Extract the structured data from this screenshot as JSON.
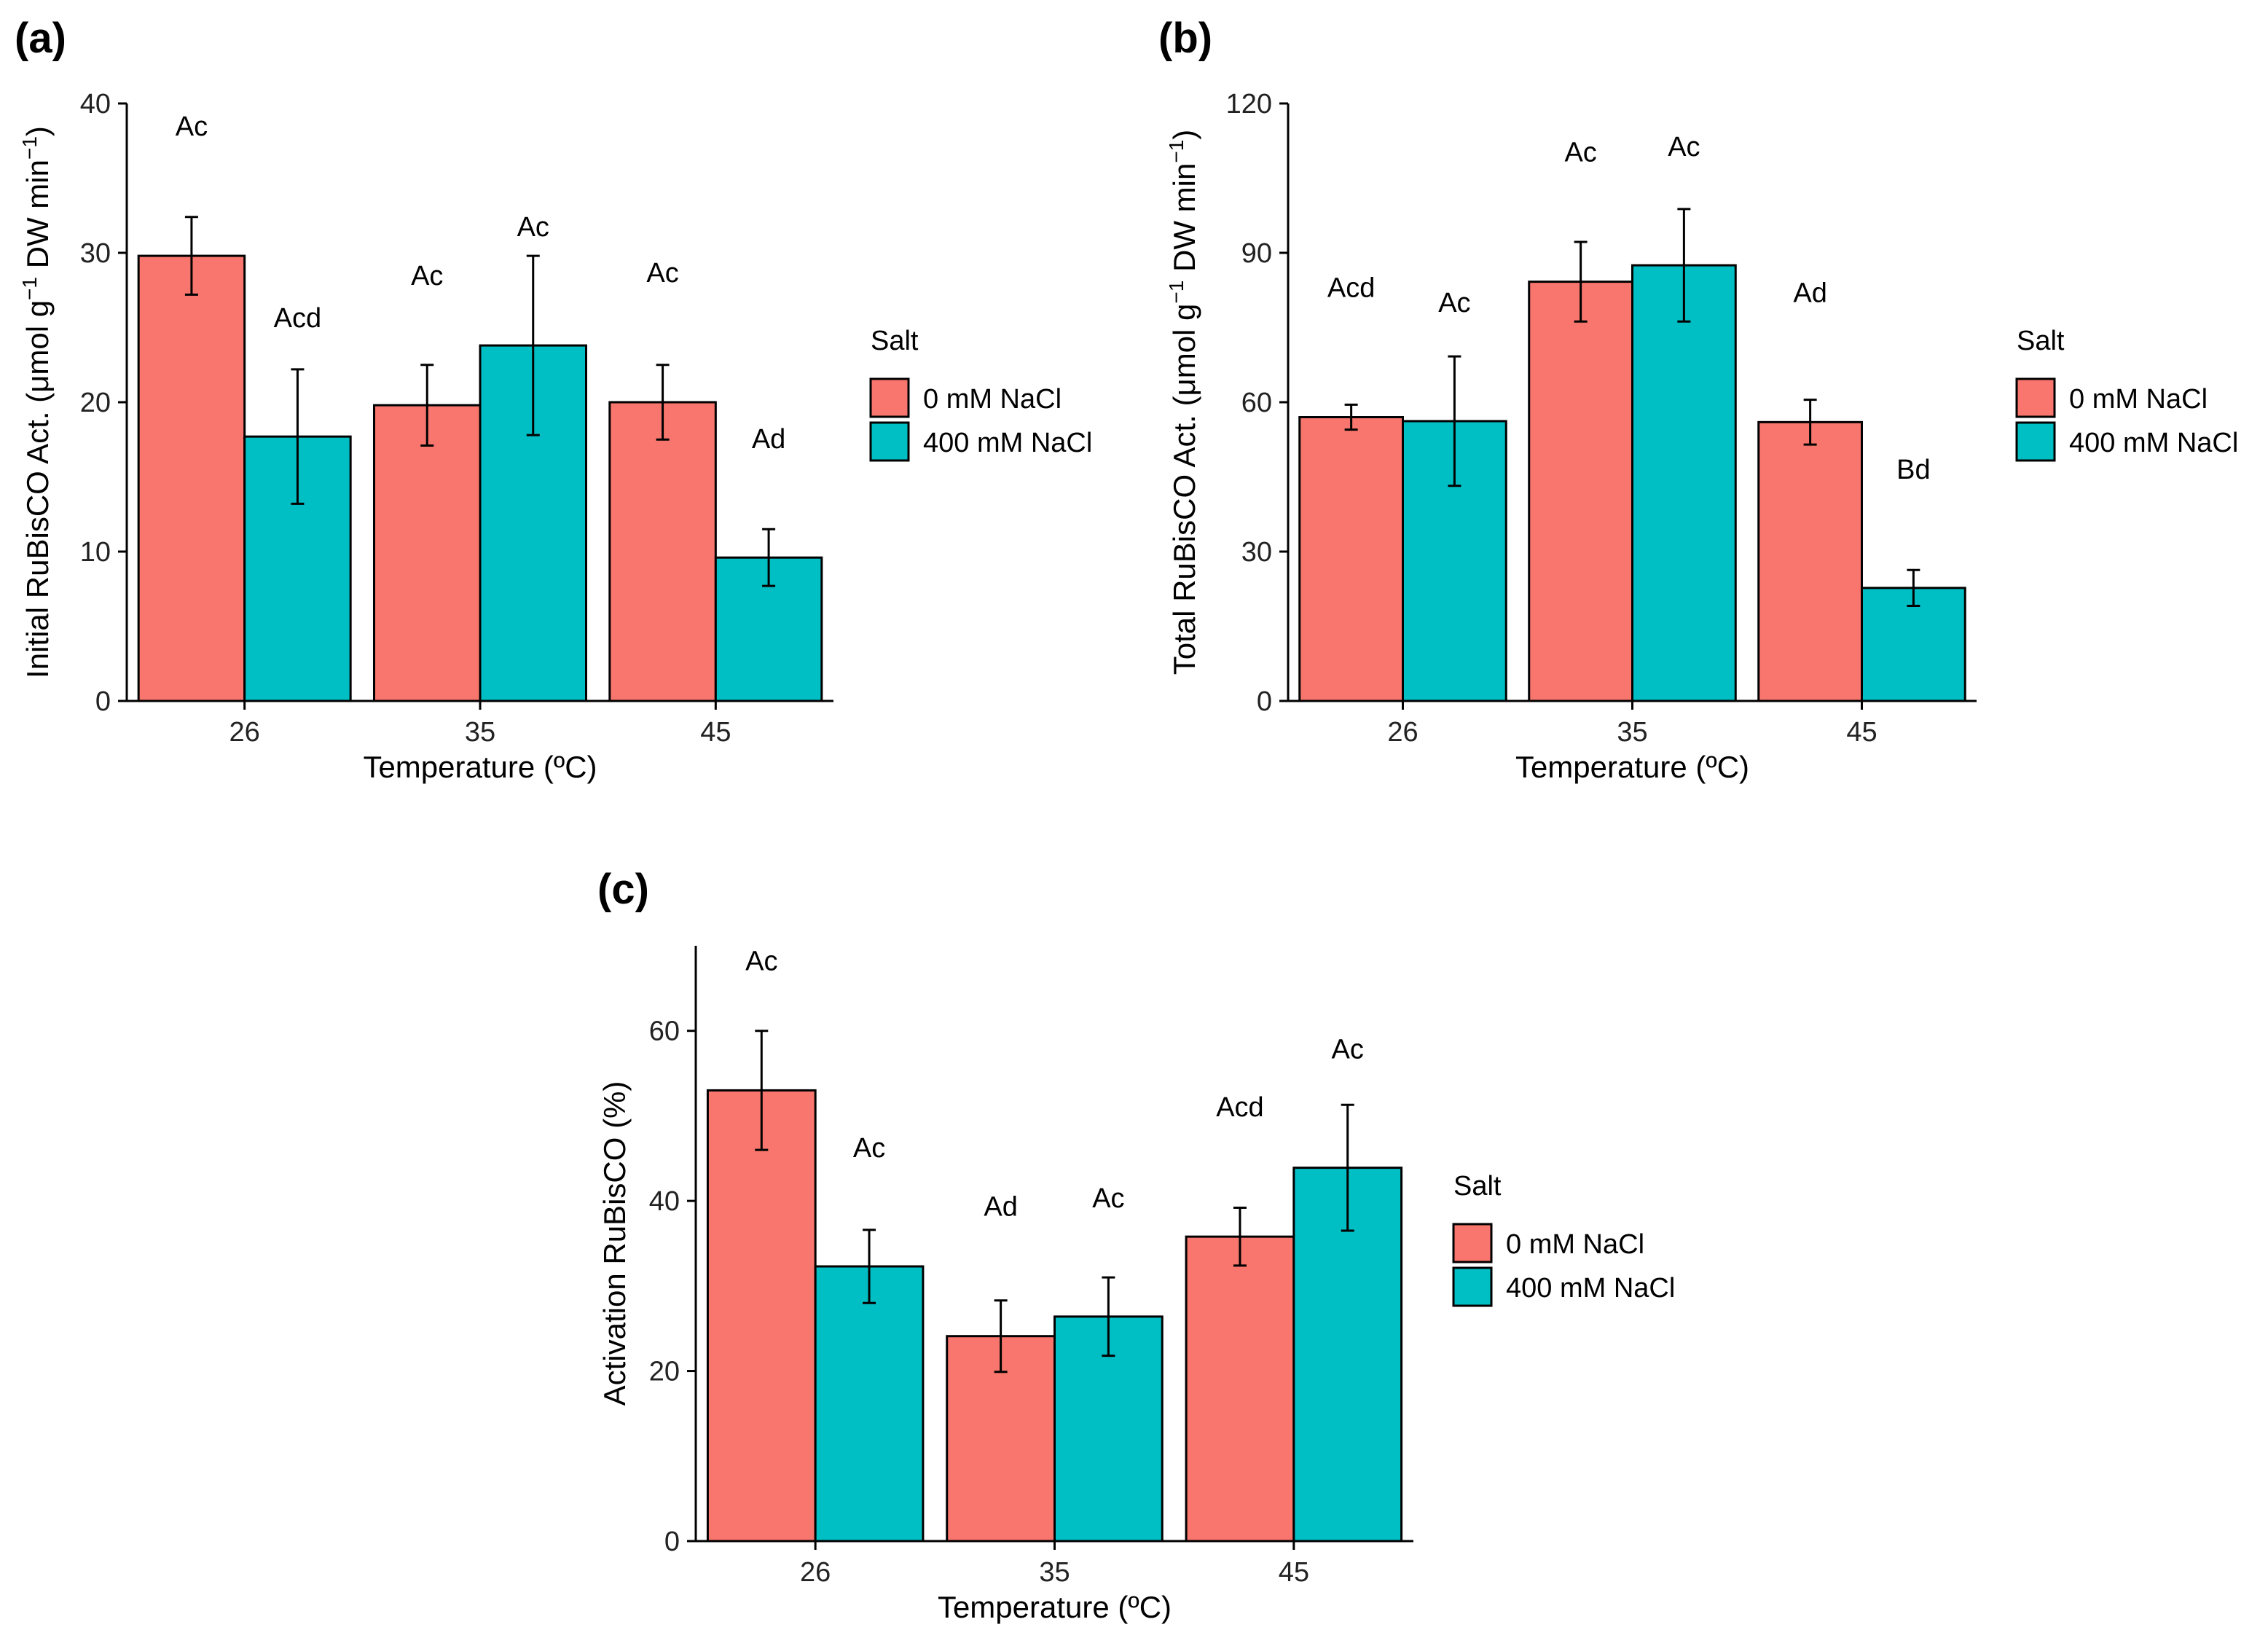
{
  "colors": {
    "salt_0": "#F8766D",
    "salt_400": "#00BFC4",
    "axis": "#000000"
  },
  "chart_data": [
    {
      "panel": "(a)",
      "type": "bar",
      "xlabel": "Temperature (ºC)",
      "ylabel_main": "Initial RuBisCO Act. (",
      "ylabel_units": "μmol g",
      "ylabel_sup1": "−1",
      "ylabel_mid": " DW min",
      "ylabel_sup2": "−1",
      "ylabel_close": ")",
      "ylim": [
        0,
        40
      ],
      "yticks": [
        0,
        10,
        20,
        30,
        40
      ],
      "categories": [
        "26",
        "35",
        "45"
      ],
      "series": [
        {
          "name": "0 mM NaCl",
          "values": [
            29.8,
            19.8,
            20.0
          ],
          "errors": [
            2.6,
            2.7,
            2.5
          ],
          "labels": [
            "Ac",
            "Ac",
            "Ac"
          ]
        },
        {
          "name": "400 mM NaCl",
          "values": [
            17.7,
            23.8,
            9.6
          ],
          "errors": [
            4.5,
            6.0,
            1.9
          ],
          "labels": [
            "Acd",
            "Ac",
            "Ad"
          ]
        }
      ],
      "legend_title": "Salt"
    },
    {
      "panel": "(b)",
      "type": "bar",
      "xlabel": "Temperature (ºC)",
      "ylabel_main": "Total RuBisCO Act. (",
      "ylabel_units": "μmol g",
      "ylabel_sup1": "−1",
      "ylabel_mid": " DW min",
      "ylabel_sup2": "−1",
      "ylabel_close": ")",
      "ylim": [
        0,
        120
      ],
      "yticks": [
        0,
        30,
        60,
        90,
        120
      ],
      "categories": [
        "26",
        "35",
        "45"
      ],
      "series": [
        {
          "name": "0 mM NaCl",
          "values": [
            57.0,
            84.2,
            56.0
          ],
          "errors": [
            2.5,
            8.0,
            4.5
          ],
          "labels": [
            "Acd",
            "Ac",
            "Ad"
          ]
        },
        {
          "name": "400 mM NaCl",
          "values": [
            56.2,
            87.5,
            22.7
          ],
          "errors": [
            13.0,
            11.3,
            3.6
          ],
          "labels": [
            "Ac",
            "Ac",
            "Bd"
          ]
        }
      ],
      "legend_title": "Salt"
    },
    {
      "panel": "(c)",
      "type": "bar",
      "xlabel": "Temperature (ºC)",
      "ylabel_main": "Activation RuBisCO (%)",
      "ylim": [
        0,
        70
      ],
      "yticks": [
        0,
        20,
        40,
        60
      ],
      "categories": [
        "26",
        "35",
        "45"
      ],
      "series": [
        {
          "name": "0 mM NaCl",
          "values": [
            53.0,
            24.1,
            35.8
          ],
          "errors": [
            7.0,
            4.2,
            3.4
          ],
          "labels": [
            "Ac",
            "Ad",
            "Acd"
          ]
        },
        {
          "name": "400 mM NaCl",
          "values": [
            32.3,
            26.4,
            43.9
          ],
          "errors": [
            4.3,
            4.6,
            7.4
          ],
          "labels": [
            "Ac",
            "Ac",
            "Ac"
          ]
        }
      ],
      "legend_title": "Salt"
    }
  ]
}
